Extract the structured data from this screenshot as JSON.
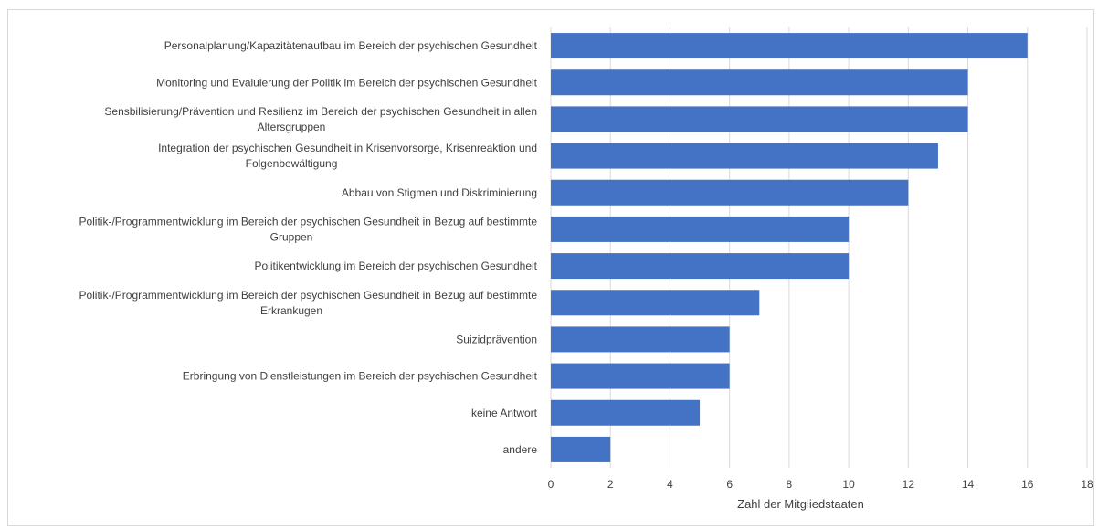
{
  "chart_data": {
    "type": "bar",
    "orientation": "horizontal",
    "categories": [
      [
        "Personalplanung/Kapazitätenaufbau im Bereich der psychischen Gesundheit"
      ],
      [
        "Monitoring und Evaluierung der Politik im Bereich der psychischen Gesundheit"
      ],
      [
        "Sensbilisierung/Prävention und Resilienz im Bereich der psychischen Gesundheit in allen",
        "Altersgruppen"
      ],
      [
        "Integration der psychischen Gesundheit in Krisenvorsorge, Krisenreaktion und",
        "Folgenbewältigung"
      ],
      [
        "Abbau von Stigmen und Diskriminierung"
      ],
      [
        "Politik-/Programmentwicklung im Bereich der psychischen Gesundheit in Bezug auf bestimmte",
        "Gruppen"
      ],
      [
        "Politikentwicklung im Bereich der psychischen Gesundheit"
      ],
      [
        "Politik-/Programmentwicklung im Bereich der psychischen Gesundheit in Bezug auf bestimmte",
        "Erkrankugen"
      ],
      [
        "Suizidprävention"
      ],
      [
        "Erbringung von Dienstleistungen im Bereich der psychischen Gesundheit"
      ],
      [
        "keine Antwort"
      ],
      [
        "andere"
      ]
    ],
    "values": [
      16,
      14,
      14,
      13,
      12,
      10,
      10,
      7,
      6,
      6,
      5,
      2
    ],
    "xlabel": "Zahl der Mitgliedstaaten",
    "xlim": [
      0,
      18
    ],
    "xticks": [
      "0",
      "2",
      "4",
      "6",
      "8",
      "10",
      "12",
      "14",
      "16",
      "18"
    ],
    "grid": "vertical",
    "legend": "none",
    "bar_color": "#4472c4"
  }
}
